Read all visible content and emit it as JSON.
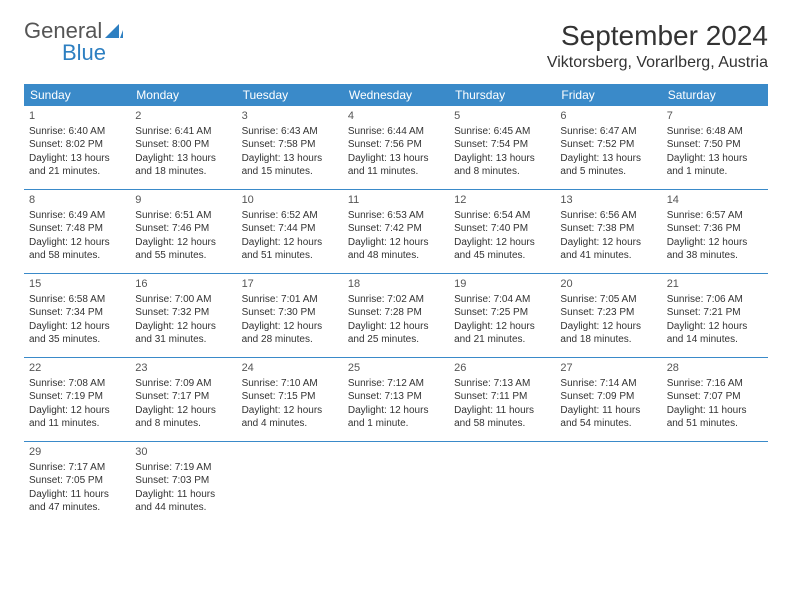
{
  "logo": {
    "text_general": "General",
    "text_blue": "Blue",
    "icon_color": "#2d7fc1"
  },
  "header": {
    "month_title": "September 2024",
    "location": "Viktorsberg, Vorarlberg, Austria"
  },
  "calendar": {
    "header_bg": "#3a8ac9",
    "header_text_color": "#ffffff",
    "border_color": "#3a8ac9",
    "font_family": "Arial",
    "day_headers": [
      "Sunday",
      "Monday",
      "Tuesday",
      "Wednesday",
      "Thursday",
      "Friday",
      "Saturday"
    ],
    "weeks": [
      [
        {
          "num": "1",
          "sunrise": "Sunrise: 6:40 AM",
          "sunset": "Sunset: 8:02 PM",
          "daylight1": "Daylight: 13 hours",
          "daylight2": "and 21 minutes."
        },
        {
          "num": "2",
          "sunrise": "Sunrise: 6:41 AM",
          "sunset": "Sunset: 8:00 PM",
          "daylight1": "Daylight: 13 hours",
          "daylight2": "and 18 minutes."
        },
        {
          "num": "3",
          "sunrise": "Sunrise: 6:43 AM",
          "sunset": "Sunset: 7:58 PM",
          "daylight1": "Daylight: 13 hours",
          "daylight2": "and 15 minutes."
        },
        {
          "num": "4",
          "sunrise": "Sunrise: 6:44 AM",
          "sunset": "Sunset: 7:56 PM",
          "daylight1": "Daylight: 13 hours",
          "daylight2": "and 11 minutes."
        },
        {
          "num": "5",
          "sunrise": "Sunrise: 6:45 AM",
          "sunset": "Sunset: 7:54 PM",
          "daylight1": "Daylight: 13 hours",
          "daylight2": "and 8 minutes."
        },
        {
          "num": "6",
          "sunrise": "Sunrise: 6:47 AM",
          "sunset": "Sunset: 7:52 PM",
          "daylight1": "Daylight: 13 hours",
          "daylight2": "and 5 minutes."
        },
        {
          "num": "7",
          "sunrise": "Sunrise: 6:48 AM",
          "sunset": "Sunset: 7:50 PM",
          "daylight1": "Daylight: 13 hours",
          "daylight2": "and 1 minute."
        }
      ],
      [
        {
          "num": "8",
          "sunrise": "Sunrise: 6:49 AM",
          "sunset": "Sunset: 7:48 PM",
          "daylight1": "Daylight: 12 hours",
          "daylight2": "and 58 minutes."
        },
        {
          "num": "9",
          "sunrise": "Sunrise: 6:51 AM",
          "sunset": "Sunset: 7:46 PM",
          "daylight1": "Daylight: 12 hours",
          "daylight2": "and 55 minutes."
        },
        {
          "num": "10",
          "sunrise": "Sunrise: 6:52 AM",
          "sunset": "Sunset: 7:44 PM",
          "daylight1": "Daylight: 12 hours",
          "daylight2": "and 51 minutes."
        },
        {
          "num": "11",
          "sunrise": "Sunrise: 6:53 AM",
          "sunset": "Sunset: 7:42 PM",
          "daylight1": "Daylight: 12 hours",
          "daylight2": "and 48 minutes."
        },
        {
          "num": "12",
          "sunrise": "Sunrise: 6:54 AM",
          "sunset": "Sunset: 7:40 PM",
          "daylight1": "Daylight: 12 hours",
          "daylight2": "and 45 minutes."
        },
        {
          "num": "13",
          "sunrise": "Sunrise: 6:56 AM",
          "sunset": "Sunset: 7:38 PM",
          "daylight1": "Daylight: 12 hours",
          "daylight2": "and 41 minutes."
        },
        {
          "num": "14",
          "sunrise": "Sunrise: 6:57 AM",
          "sunset": "Sunset: 7:36 PM",
          "daylight1": "Daylight: 12 hours",
          "daylight2": "and 38 minutes."
        }
      ],
      [
        {
          "num": "15",
          "sunrise": "Sunrise: 6:58 AM",
          "sunset": "Sunset: 7:34 PM",
          "daylight1": "Daylight: 12 hours",
          "daylight2": "and 35 minutes."
        },
        {
          "num": "16",
          "sunrise": "Sunrise: 7:00 AM",
          "sunset": "Sunset: 7:32 PM",
          "daylight1": "Daylight: 12 hours",
          "daylight2": "and 31 minutes."
        },
        {
          "num": "17",
          "sunrise": "Sunrise: 7:01 AM",
          "sunset": "Sunset: 7:30 PM",
          "daylight1": "Daylight: 12 hours",
          "daylight2": "and 28 minutes."
        },
        {
          "num": "18",
          "sunrise": "Sunrise: 7:02 AM",
          "sunset": "Sunset: 7:28 PM",
          "daylight1": "Daylight: 12 hours",
          "daylight2": "and 25 minutes."
        },
        {
          "num": "19",
          "sunrise": "Sunrise: 7:04 AM",
          "sunset": "Sunset: 7:25 PM",
          "daylight1": "Daylight: 12 hours",
          "daylight2": "and 21 minutes."
        },
        {
          "num": "20",
          "sunrise": "Sunrise: 7:05 AM",
          "sunset": "Sunset: 7:23 PM",
          "daylight1": "Daylight: 12 hours",
          "daylight2": "and 18 minutes."
        },
        {
          "num": "21",
          "sunrise": "Sunrise: 7:06 AM",
          "sunset": "Sunset: 7:21 PM",
          "daylight1": "Daylight: 12 hours",
          "daylight2": "and 14 minutes."
        }
      ],
      [
        {
          "num": "22",
          "sunrise": "Sunrise: 7:08 AM",
          "sunset": "Sunset: 7:19 PM",
          "daylight1": "Daylight: 12 hours",
          "daylight2": "and 11 minutes."
        },
        {
          "num": "23",
          "sunrise": "Sunrise: 7:09 AM",
          "sunset": "Sunset: 7:17 PM",
          "daylight1": "Daylight: 12 hours",
          "daylight2": "and 8 minutes."
        },
        {
          "num": "24",
          "sunrise": "Sunrise: 7:10 AM",
          "sunset": "Sunset: 7:15 PM",
          "daylight1": "Daylight: 12 hours",
          "daylight2": "and 4 minutes."
        },
        {
          "num": "25",
          "sunrise": "Sunrise: 7:12 AM",
          "sunset": "Sunset: 7:13 PM",
          "daylight1": "Daylight: 12 hours",
          "daylight2": "and 1 minute."
        },
        {
          "num": "26",
          "sunrise": "Sunrise: 7:13 AM",
          "sunset": "Sunset: 7:11 PM",
          "daylight1": "Daylight: 11 hours",
          "daylight2": "and 58 minutes."
        },
        {
          "num": "27",
          "sunrise": "Sunrise: 7:14 AM",
          "sunset": "Sunset: 7:09 PM",
          "daylight1": "Daylight: 11 hours",
          "daylight2": "and 54 minutes."
        },
        {
          "num": "28",
          "sunrise": "Sunrise: 7:16 AM",
          "sunset": "Sunset: 7:07 PM",
          "daylight1": "Daylight: 11 hours",
          "daylight2": "and 51 minutes."
        }
      ],
      [
        {
          "num": "29",
          "sunrise": "Sunrise: 7:17 AM",
          "sunset": "Sunset: 7:05 PM",
          "daylight1": "Daylight: 11 hours",
          "daylight2": "and 47 minutes."
        },
        {
          "num": "30",
          "sunrise": "Sunrise: 7:19 AM",
          "sunset": "Sunset: 7:03 PM",
          "daylight1": "Daylight: 11 hours",
          "daylight2": "and 44 minutes."
        },
        null,
        null,
        null,
        null,
        null
      ]
    ]
  }
}
